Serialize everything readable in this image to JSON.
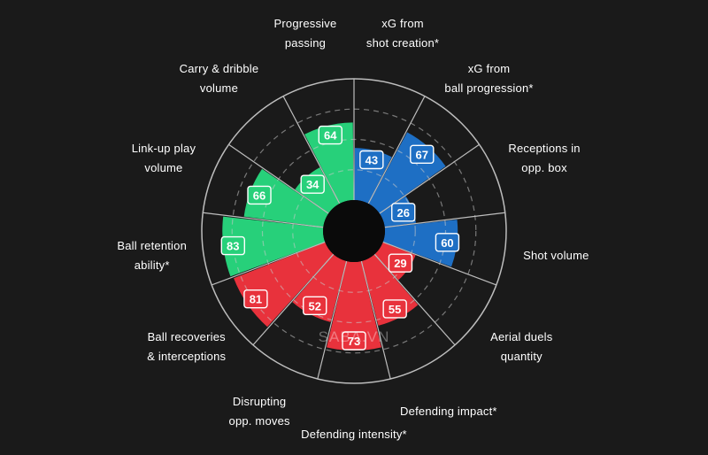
{
  "chart_data": {
    "type": "radar-bar",
    "title": "",
    "rmax": 100,
    "grid_rings": [
      25,
      50,
      75
    ],
    "groups": [
      {
        "name": "",
        "color": "#1e6fc4"
      },
      {
        "name": "",
        "color": "#e8323c"
      },
      {
        "name": "",
        "color": "#27d07a"
      }
    ],
    "categories": [
      {
        "label": "xG from\nshot creation*",
        "value": 43,
        "group": 0
      },
      {
        "label": "xG from\nball progression*",
        "value": 67,
        "group": 0
      },
      {
        "label": "Receptions in\nopp. box",
        "value": 26,
        "group": 0
      },
      {
        "label": "Shot volume",
        "value": 60,
        "group": 0
      },
      {
        "label": "Aerial duels\nquantity",
        "value": 29,
        "group": 1
      },
      {
        "label": "Defending impact*",
        "value": 55,
        "group": 1
      },
      {
        "label": "Defending intensity*",
        "value": 73,
        "group": 1
      },
      {
        "label": "Disrupting\nopp. moves",
        "value": 52,
        "group": 1
      },
      {
        "label": "Ball recoveries\n& interceptions",
        "value": 81,
        "group": 1
      },
      {
        "label": "Ball retention\nability*",
        "value": 83,
        "group": 2
      },
      {
        "label": "Link-up play\nvolume",
        "value": 66,
        "group": 2
      },
      {
        "label": "Carry & dribble\nvolume",
        "value": 34,
        "group": 2
      },
      {
        "label": "Progressive\npassing",
        "value": 64,
        "group": 2
      }
    ]
  },
  "watermark": "SABA.VN"
}
